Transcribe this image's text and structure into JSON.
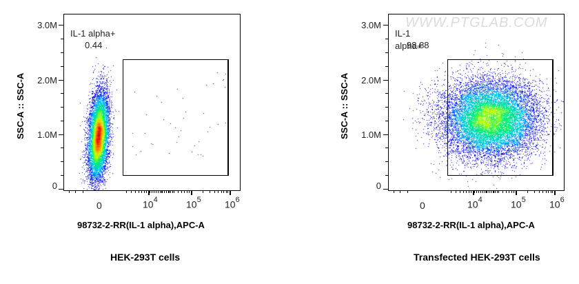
{
  "watermark": "WWW.PTGLAB.COM",
  "chart_data": [
    {
      "type": "scatter",
      "title": "HEK-293T cells",
      "xlabel": "98732-2-RR(IL-1 alpha),APC-A",
      "ylabel": "SSC-A :: SSC-A",
      "x_scale": "biexponential",
      "x_tick_labels": [
        "0",
        "10^4",
        "10^5",
        "10^6"
      ],
      "y_tick_labels": [
        "0",
        "1.0M",
        "2.0M",
        "3.0M"
      ],
      "ylim": [
        0,
        3200000
      ],
      "gate": {
        "name": "IL-1 alpha+",
        "percent": 0.44,
        "x_range": [
          "~10^3.5",
          "~10^6"
        ],
        "y_range": [
          250000,
          2400000
        ]
      },
      "population": {
        "x_center": "~0",
        "y_center": 1000000,
        "y_spread": [
          450000,
          2400000
        ],
        "shape": "narrow vertical ellipse"
      },
      "density_colors": [
        "#00008b",
        "#0000ff",
        "#00bfff",
        "#00ff80",
        "#ffff00",
        "#ff8000",
        "#ff0000"
      ]
    },
    {
      "type": "scatter",
      "title": "Transfected HEK-293T cells",
      "xlabel": "98732-2-RR(IL-1 alpha),APC-A",
      "ylabel": "SSC-A :: SSC-A",
      "x_scale": "biexponential",
      "x_tick_labels": [
        "0",
        "10^4",
        "10^5",
        "10^6"
      ],
      "y_tick_labels": [
        "0",
        "1.0M",
        "2.0M",
        "3.0M"
      ],
      "ylim": [
        0,
        3200000
      ],
      "gate": {
        "name": "IL-1 alpha+",
        "percent": 98.88,
        "x_range": [
          "~10^3.5",
          "~10^6"
        ],
        "y_range": [
          250000,
          2400000
        ]
      },
      "population": {
        "x_center": "~10^4.6",
        "y_center": 1300000,
        "y_spread": [
          600000,
          2200000
        ],
        "shape": "broad round cloud"
      },
      "density_colors": [
        "#00008b",
        "#0000ff",
        "#00bfff",
        "#00ff80",
        "#ffff00"
      ]
    }
  ],
  "panels": [
    {
      "gate_label": "IL-1 alpha+",
      "gate_value": "0.44",
      "ylabel": "SSC-A :: SSC-A",
      "xlabel": "98732-2-RR(IL-1 alpha),APC-A",
      "caption": "HEK-293T cells",
      "yticks": [
        "3.0M",
        "2.0M",
        "1.0M",
        "0"
      ],
      "xticks": {
        "zero": "0",
        "e4_base": "10",
        "e4_exp": "4",
        "e5_base": "10",
        "e5_exp": "5",
        "e6_base": "10",
        "e6_exp": "6"
      }
    },
    {
      "gate_label": "IL-1 alpha+",
      "gate_value": "98.88",
      "ylabel": "SSC-A :: SSC-A",
      "xlabel": "98732-2-RR(IL-1 alpha),APC-A",
      "caption": "Transfected HEK-293T cells",
      "yticks": [
        "3.0M",
        "2.0M",
        "1.0M",
        "0"
      ],
      "xticks": {
        "zero": "0",
        "e4_base": "10",
        "e4_exp": "4",
        "e5_base": "10",
        "e5_exp": "5",
        "e6_base": "10",
        "e6_exp": "6"
      }
    }
  ]
}
